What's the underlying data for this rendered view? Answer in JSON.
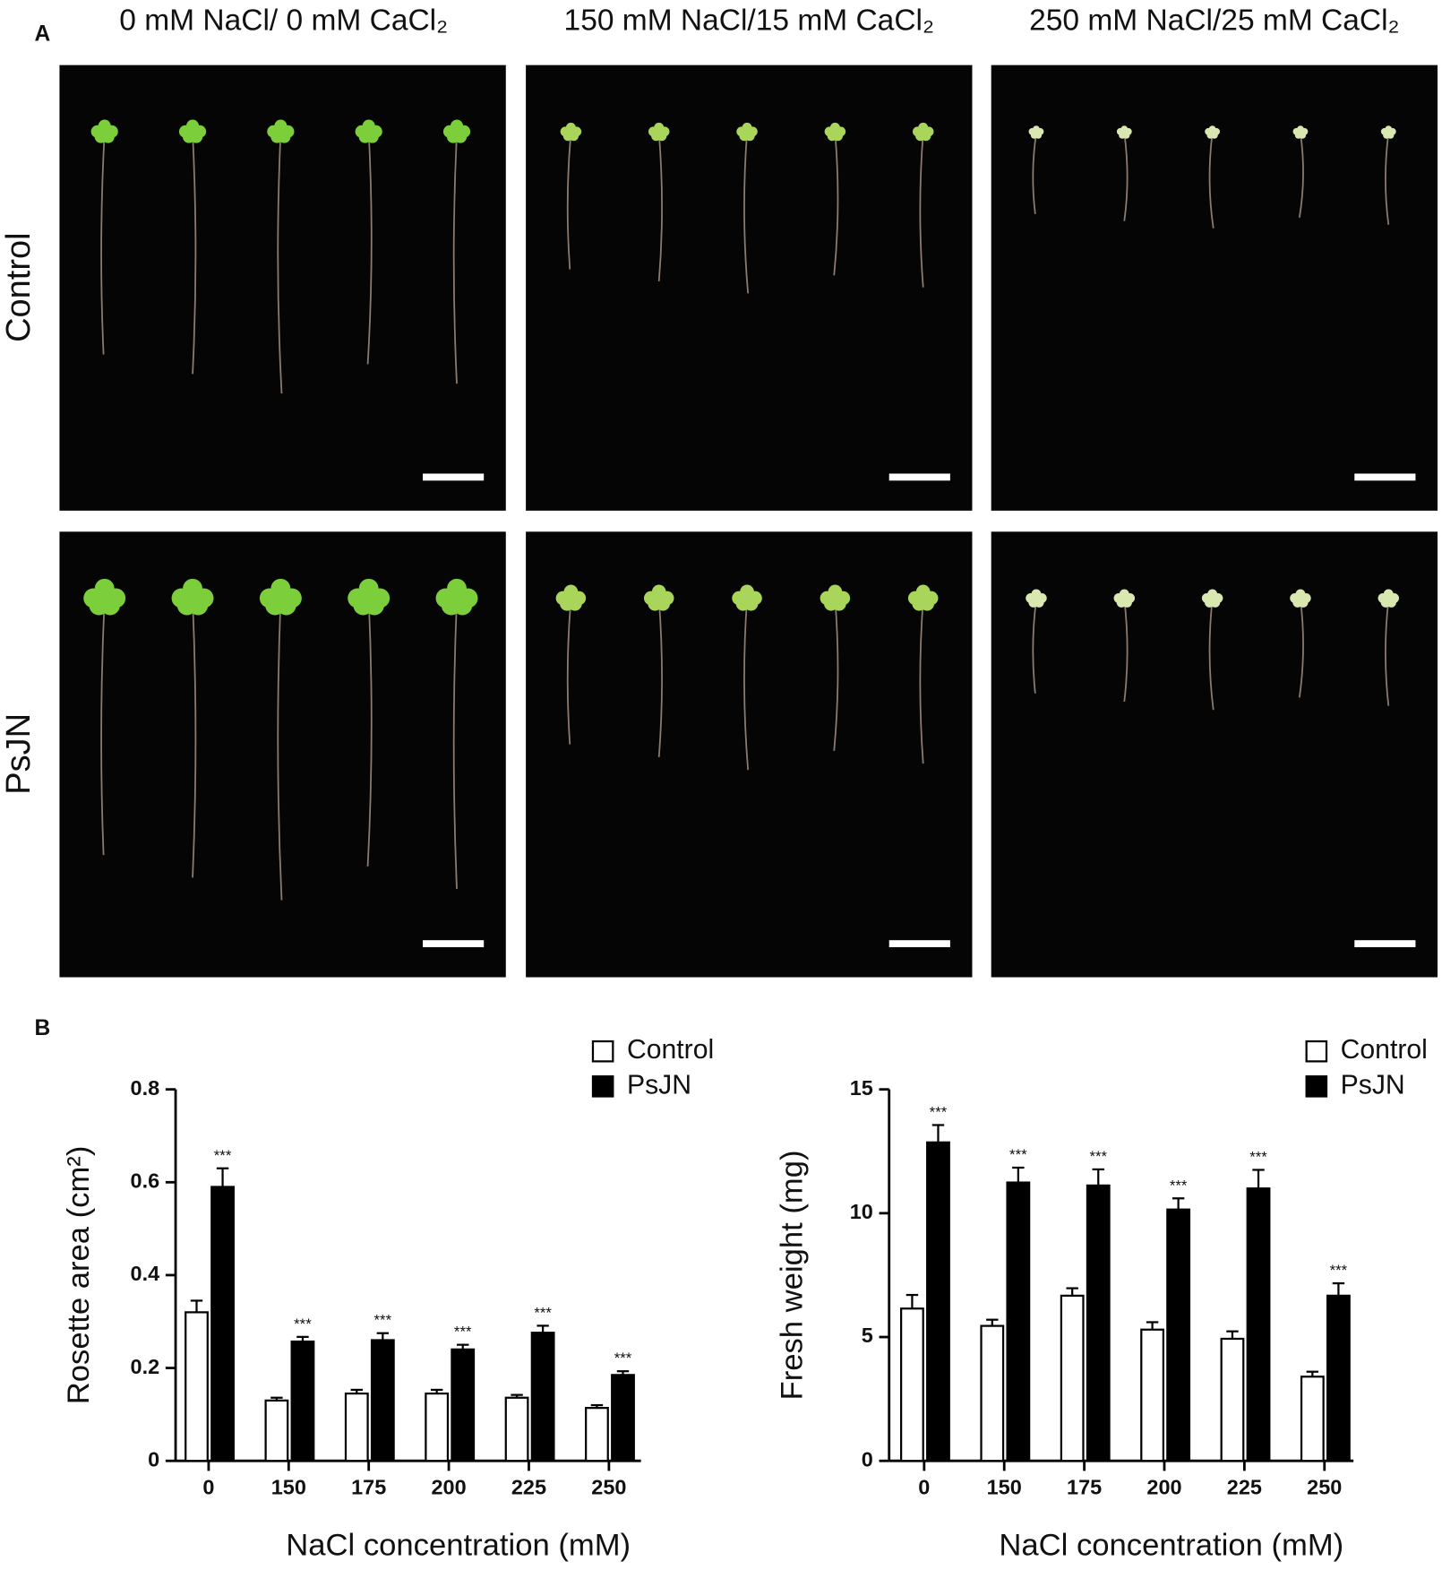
{
  "panel_labels": [
    "A",
    "B"
  ],
  "photo_panel": {
    "columns": [
      "0 mM NaCl/ 0 mM CaCl₂",
      "150 mM NaCl/15 mM CaCl₂",
      "250 mM NaCl/25 mM CaCl₂"
    ],
    "rows": [
      "Control",
      "PsJN"
    ]
  },
  "chart_data": [
    {
      "type": "bar",
      "y_label": "Rosette area (cm²)",
      "x_label": "NaCl concentration (mM)",
      "categories": [
        "0",
        "150",
        "175",
        "200",
        "225",
        "250"
      ],
      "ylim": [
        0,
        0.8
      ],
      "yticks": [
        0,
        0.2,
        0.4,
        0.6,
        0.8
      ],
      "legend": "top-right",
      "series": [
        {
          "name": "Control",
          "color": "#ffffff",
          "values": [
            0.32,
            0.13,
            0.145,
            0.145,
            0.136,
            0.114
          ],
          "errors": [
            0.025,
            0.006,
            0.008,
            0.008,
            0.006,
            0.006
          ]
        },
        {
          "name": "PsJN",
          "color": "#000000",
          "values": [
            0.59,
            0.257,
            0.26,
            0.24,
            0.276,
            0.185
          ],
          "errors": [
            0.04,
            0.01,
            0.015,
            0.01,
            0.015,
            0.008
          ],
          "significance": [
            "***",
            "***",
            "***",
            "***",
            "***",
            "***"
          ]
        }
      ]
    },
    {
      "type": "bar",
      "y_label": "Fresh weight (mg)",
      "x_label": "NaCl concentration (mM)",
      "categories": [
        "0",
        "150",
        "175",
        "200",
        "225",
        "250"
      ],
      "ylim": [
        0,
        15
      ],
      "yticks": [
        0,
        5,
        10,
        15
      ],
      "legend": "top-right",
      "series": [
        {
          "name": "Control",
          "color": "#ffffff",
          "values": [
            6.15,
            5.45,
            6.67,
            5.3,
            4.93,
            3.4
          ],
          "errors": [
            0.55,
            0.25,
            0.3,
            0.3,
            0.3,
            0.2
          ]
        },
        {
          "name": "PsJN",
          "color": "#000000",
          "values": [
            12.86,
            11.24,
            11.12,
            10.15,
            11.0,
            6.67
          ],
          "errors": [
            0.7,
            0.6,
            0.65,
            0.45,
            0.75,
            0.5
          ],
          "significance": [
            "***",
            "***",
            "***",
            "***",
            "***",
            "***"
          ]
        }
      ]
    }
  ]
}
